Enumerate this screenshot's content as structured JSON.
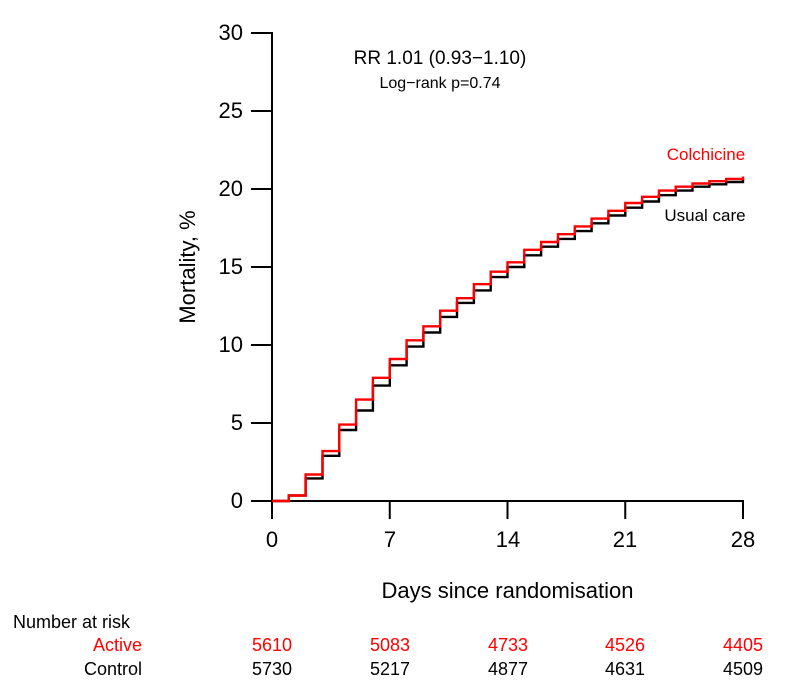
{
  "chart_data": {
    "type": "line",
    "subtype": "step-survival",
    "annotation": {
      "line1": "RR 1.01 (0.93−1.10)",
      "line2": "Log−rank p=0.74"
    },
    "xlabel": "Days since randomisation",
    "ylabel": "Mortality, %",
    "xlim": [
      0,
      28
    ],
    "ylim": [
      0,
      30
    ],
    "xticks": [
      0,
      7,
      14,
      21,
      28
    ],
    "yticks": [
      0,
      5,
      10,
      15,
      20,
      25,
      30
    ],
    "grid": "off",
    "x": [
      0,
      1,
      2,
      3,
      4,
      5,
      6,
      7,
      8,
      9,
      10,
      11,
      12,
      13,
      14,
      15,
      16,
      17,
      18,
      19,
      20,
      21,
      22,
      23,
      24,
      25,
      26,
      27,
      28
    ],
    "series": [
      {
        "name": "Colchicine",
        "color": "#ff0000",
        "values": [
          0,
          0.35,
          1.7,
          3.2,
          4.9,
          6.5,
          7.9,
          9.1,
          10.3,
          11.2,
          12.2,
          13.0,
          13.9,
          14.7,
          15.3,
          16.1,
          16.6,
          17.1,
          17.6,
          18.1,
          18.6,
          19.1,
          19.5,
          19.9,
          20.15,
          20.35,
          20.5,
          20.65,
          20.8
        ]
      },
      {
        "name": "Usual care",
        "color": "#000000",
        "values": [
          0,
          0.35,
          1.45,
          2.9,
          4.55,
          5.8,
          7.4,
          8.7,
          9.9,
          10.8,
          11.8,
          12.7,
          13.5,
          14.35,
          15.0,
          15.75,
          16.3,
          16.8,
          17.3,
          17.8,
          18.3,
          18.8,
          19.2,
          19.6,
          19.9,
          20.15,
          20.3,
          20.45,
          20.65
        ]
      }
    ],
    "legend_position": "curve-end-labels"
  },
  "risk_table": {
    "header": "Number at risk",
    "rows": [
      {
        "label": "Active",
        "color": "#ff0000",
        "values": [
          "5610",
          "5083",
          "4733",
          "4526",
          "4405"
        ]
      },
      {
        "label": "Control",
        "color": "#000000",
        "values": [
          "5730",
          "5217",
          "4877",
          "4631",
          "4509"
        ]
      }
    ]
  },
  "colors": {
    "accent": "#ff0000",
    "axis": "#000000",
    "background": "#ffffff"
  }
}
